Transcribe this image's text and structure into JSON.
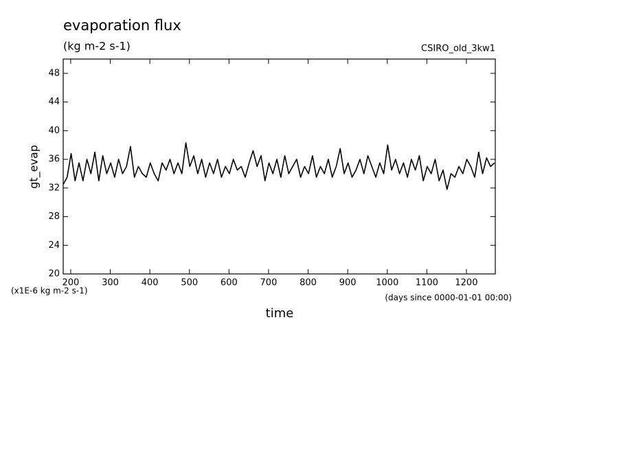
{
  "chart_data": {
    "type": "line",
    "title": "evaporation flux",
    "subtitle": "(kg m-2 s-1)",
    "source_label": "CSIRO_old_3kw1",
    "y_label": "gt_evap",
    "x_label": "time",
    "y_units_note": "(x1E-6 kg m-2 s-1)",
    "x_units_note": "(days since 0000-01-01 00:00)",
    "xlim": [
      181,
      1273
    ],
    "ylim": [
      20,
      50
    ],
    "xticks": [
      200,
      300,
      400,
      500,
      600,
      700,
      800,
      900,
      1000,
      1100,
      1200
    ],
    "yticks": [
      20,
      24,
      28,
      32,
      36,
      40,
      44,
      48
    ],
    "x": [
      181,
      191,
      201,
      211,
      221,
      231,
      241,
      251,
      261,
      271,
      281,
      291,
      301,
      311,
      321,
      331,
      341,
      351,
      361,
      371,
      381,
      391,
      401,
      411,
      421,
      431,
      441,
      451,
      461,
      471,
      481,
      491,
      501,
      511,
      521,
      531,
      541,
      551,
      561,
      571,
      581,
      591,
      601,
      611,
      621,
      631,
      641,
      651,
      661,
      671,
      681,
      691,
      701,
      711,
      721,
      731,
      741,
      751,
      761,
      771,
      781,
      791,
      801,
      811,
      821,
      831,
      841,
      851,
      861,
      871,
      881,
      891,
      901,
      911,
      921,
      931,
      941,
      951,
      961,
      971,
      981,
      991,
      1001,
      1011,
      1021,
      1031,
      1041,
      1051,
      1061,
      1071,
      1081,
      1091,
      1101,
      1111,
      1121,
      1131,
      1141,
      1151,
      1161,
      1171,
      1181,
      1191,
      1201,
      1211,
      1221,
      1231,
      1241,
      1251,
      1261,
      1271
    ],
    "series": [
      {
        "name": "gt_evap",
        "color": "#000000",
        "values": [
          32.5,
          33.5,
          36.8,
          33,
          35.5,
          33,
          36,
          34,
          37,
          33,
          36.5,
          34,
          35.5,
          33.5,
          36,
          34,
          35,
          37.8,
          33.5,
          35,
          34,
          33.5,
          35.5,
          34,
          33,
          35.5,
          34.5,
          36,
          34,
          35.5,
          34,
          38.3,
          35,
          36.5,
          34,
          36,
          33.5,
          35.5,
          34,
          36,
          33.5,
          35,
          34,
          36,
          34.5,
          35,
          33.5,
          35.5,
          37.2,
          35,
          36.5,
          33,
          35.5,
          34,
          36,
          33.5,
          36.5,
          34,
          35,
          36,
          33.5,
          35,
          34,
          36.5,
          33.5,
          35,
          34,
          36,
          33.5,
          35,
          37.5,
          34,
          35.5,
          33.5,
          34.5,
          36,
          34,
          36.5,
          35,
          33.5,
          35.5,
          34,
          38,
          34.5,
          36,
          34,
          35.5,
          33.5,
          36,
          34.5,
          36.5,
          33,
          35,
          34,
          36,
          33,
          34.5,
          31.8,
          34,
          33.5,
          35,
          34,
          36,
          35,
          33.5,
          37,
          34,
          36.2,
          35,
          35.5
        ]
      }
    ]
  }
}
